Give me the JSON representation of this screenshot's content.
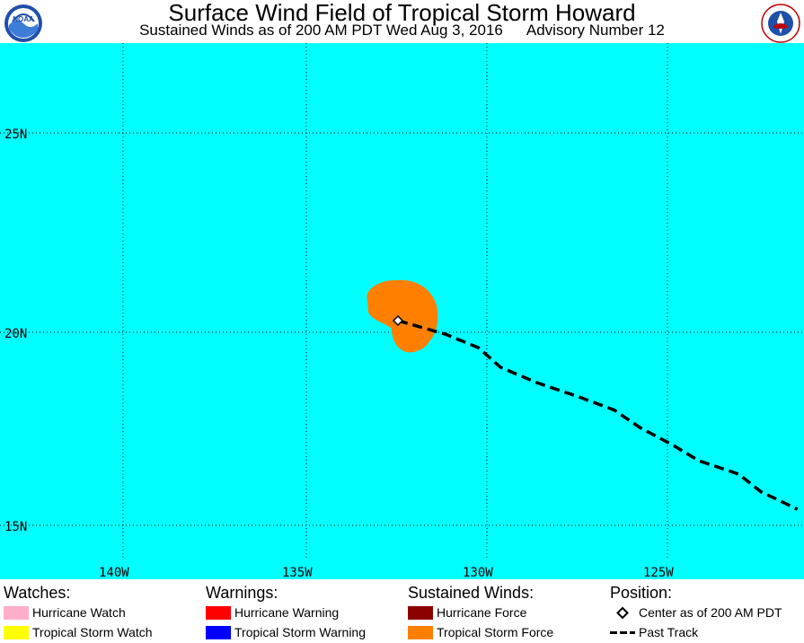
{
  "header": {
    "title": "Surface Wind Field of Tropical Storm Howard",
    "subtitle_part1": "Sustained Winds as of 200 AM PDT Wed Aug 3, 2016",
    "subtitle_part2": "Advisory Number 12"
  },
  "logos": {
    "left": "NOAA",
    "right_text": "NATIONAL WEATHER SERVICE"
  },
  "map": {
    "ocean_color": "#00ffff",
    "wind_field_color": "#ff8000",
    "lat_labels": [
      "25N",
      "20N",
      "15N"
    ],
    "lon_labels": [
      "140W",
      "135W",
      "130W",
      "125W"
    ],
    "storm_center": {
      "lat": 20.3,
      "lon": -132.5
    },
    "past_track": [
      {
        "lat": 20.3,
        "lon": -132.5
      },
      {
        "lat": 19.95,
        "lon": -131.2
      },
      {
        "lat": 19.6,
        "lon": -130.3
      },
      {
        "lat": 19.1,
        "lon": -129.7
      },
      {
        "lat": 18.7,
        "lon": -128.7
      },
      {
        "lat": 18.35,
        "lon": -127.6
      },
      {
        "lat": 18.0,
        "lon": -126.6
      },
      {
        "lat": 17.55,
        "lon": -125.9
      },
      {
        "lat": 17.1,
        "lon": -125.0
      },
      {
        "lat": 16.7,
        "lon": -124.3
      },
      {
        "lat": 16.35,
        "lon": -123.2
      },
      {
        "lat": 15.9,
        "lon": -122.6
      },
      {
        "lat": 15.45,
        "lon": -121.6
      }
    ]
  },
  "legend": {
    "watches": {
      "heading": "Watches:",
      "items": [
        {
          "label": "Hurricane Watch",
          "color": "#ffaec9"
        },
        {
          "label": "Tropical Storm Watch",
          "color": "#ffff00"
        }
      ]
    },
    "warnings": {
      "heading": "Warnings:",
      "items": [
        {
          "label": "Hurricane Warning",
          "color": "#ff0000"
        },
        {
          "label": "Tropical Storm Warning",
          "color": "#0000ff"
        }
      ]
    },
    "winds": {
      "heading": "Sustained Winds:",
      "items": [
        {
          "label": "Hurricane Force",
          "color": "#8b0000"
        },
        {
          "label": "Tropical Storm Force",
          "color": "#ff8000"
        }
      ]
    },
    "position": {
      "heading": "Position:",
      "items": [
        {
          "label": "Center as of 200 AM PDT"
        },
        {
          "label": "Past Track"
        }
      ]
    }
  }
}
